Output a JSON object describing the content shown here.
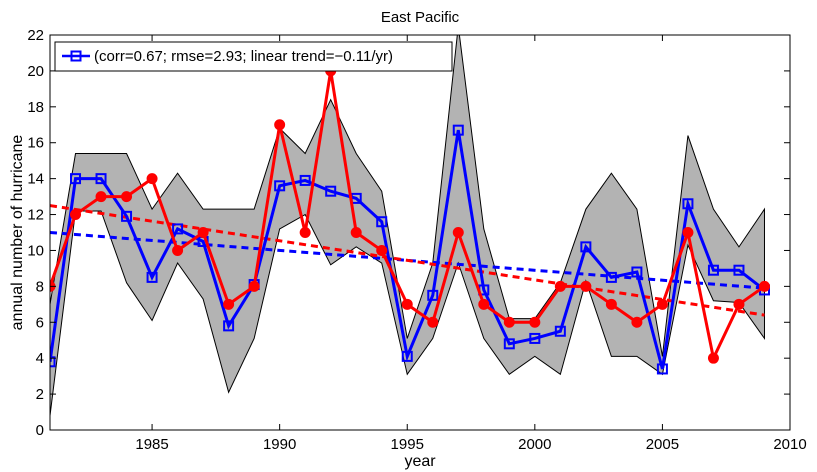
{
  "chart_data": {
    "type": "line",
    "title": "East Pacific",
    "xlabel": "year",
    "ylabel": "annual number of hurricane",
    "xlim": [
      1981,
      2010
    ],
    "ylim": [
      0,
      22
    ],
    "xticks": [
      1985,
      1990,
      1995,
      2000,
      2005,
      2010
    ],
    "yticks": [
      0,
      2,
      4,
      6,
      8,
      10,
      12,
      14,
      16,
      18,
      20,
      22
    ],
    "grid": false,
    "legend_position": "top-left",
    "x": [
      1981,
      1982,
      1983,
      1984,
      1985,
      1986,
      1987,
      1988,
      1989,
      1990,
      1991,
      1992,
      1993,
      1994,
      1995,
      1996,
      1997,
      1998,
      1999,
      2000,
      2001,
      2002,
      2003,
      2004,
      2005,
      2006,
      2007,
      2008,
      2009
    ],
    "series": [
      {
        "name": "(corr=0.67; rmse=2.93; linear trend=−0.11/yr)",
        "color": "#0000ff",
        "marker": "square",
        "values": [
          3.8,
          14,
          14,
          11.9,
          8.5,
          11.2,
          10.5,
          5.8,
          8.1,
          13.6,
          13.9,
          13.3,
          12.9,
          11.6,
          4.1,
          7.5,
          16.7,
          7.8,
          4.8,
          5.1,
          5.5,
          10.2,
          8.5,
          8.8,
          3.4,
          12.6,
          8.9,
          8.9,
          7.8
        ]
      },
      {
        "color": "#ff0000",
        "marker": "circle",
        "values": [
          8,
          12,
          13,
          13,
          14,
          10,
          11,
          7,
          8,
          17,
          11,
          20,
          11,
          10,
          7,
          6,
          11,
          7,
          6,
          6,
          8,
          8,
          7,
          6,
          7,
          11,
          4,
          7,
          8
        ]
      }
    ],
    "spread_band": {
      "color": "#b3b3b3",
      "lower": [
        0.8,
        12.2,
        12.2,
        8.2,
        6.1,
        9.3,
        7.3,
        2.1,
        5.1,
        11.2,
        12.0,
        9.2,
        10.2,
        9.3,
        3.1,
        5.1,
        9.3,
        5.1,
        3.1,
        4.1,
        3.1,
        8.3,
        4.1,
        4.1,
        3.1,
        10.3,
        7.2,
        7.1,
        5.1
      ],
      "upper": [
        7.0,
        15.4,
        15.4,
        15.4,
        12.3,
        14.3,
        12.3,
        12.3,
        12.3,
        16.8,
        15.4,
        18.4,
        15.4,
        13.3,
        5.1,
        9.3,
        22.5,
        11.2,
        6.2,
        6.2,
        8.2,
        12.3,
        14.3,
        12.3,
        4.1,
        16.4,
        12.3,
        10.2,
        12.3
      ]
    },
    "trend_lines": [
      {
        "color": "#0000ff",
        "style": "dashed",
        "x": [
          1981,
          2009
        ],
        "y": [
          11.0,
          7.9
        ]
      },
      {
        "color": "#ff0000",
        "style": "dashed",
        "x": [
          1981,
          2009
        ],
        "y": [
          12.5,
          6.4
        ]
      }
    ]
  }
}
